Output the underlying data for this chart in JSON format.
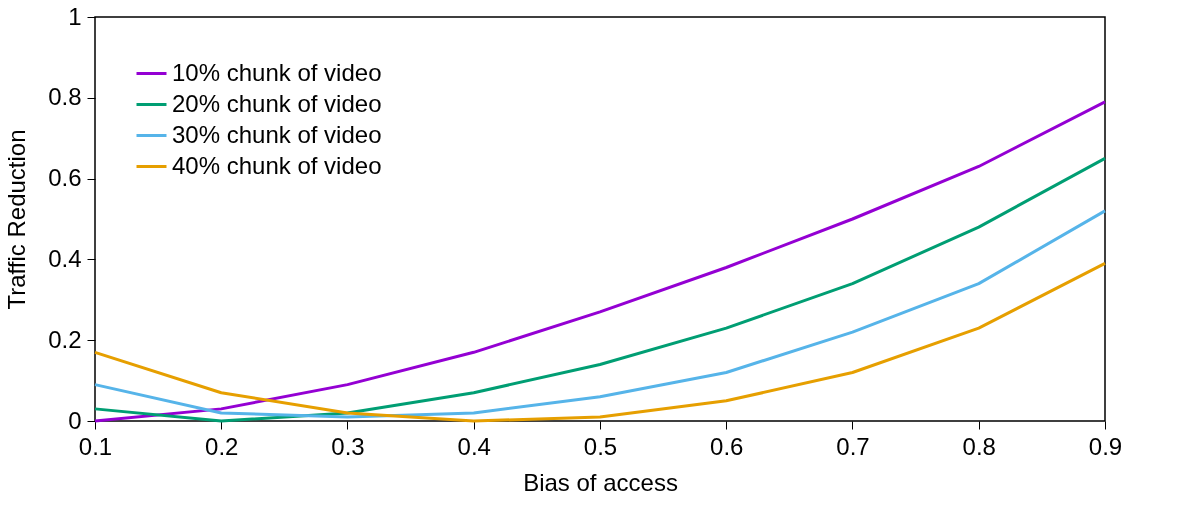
{
  "chart_data": {
    "type": "line",
    "xlabel": "Bias of access",
    "ylabel": "Traffic Reduction",
    "x": [
      0.1,
      0.2,
      0.3,
      0.4,
      0.5,
      0.6,
      0.7,
      0.8,
      0.9
    ],
    "series": [
      {
        "name": "10% chunk of video",
        "color": "#9400d3",
        "values": [
          0.0,
          0.03,
          0.09,
          0.17,
          0.27,
          0.38,
          0.5,
          0.63,
          0.79
        ]
      },
      {
        "name": "20% chunk of video",
        "color": "#009e73",
        "values": [
          0.03,
          0.0,
          0.02,
          0.07,
          0.14,
          0.23,
          0.34,
          0.48,
          0.65
        ]
      },
      {
        "name": "30% chunk of video",
        "color": "#56b4e9",
        "values": [
          0.09,
          0.02,
          0.01,
          0.02,
          0.06,
          0.12,
          0.22,
          0.34,
          0.52
        ]
      },
      {
        "name": "40% chunk of video",
        "color": "#e69f00",
        "values": [
          0.17,
          0.07,
          0.02,
          0.0,
          0.01,
          0.05,
          0.12,
          0.23,
          0.39
        ]
      }
    ],
    "xlim": [
      0.1,
      0.9
    ],
    "ylim": [
      0,
      1
    ],
    "xticks": [
      0.1,
      0.2,
      0.3,
      0.4,
      0.5,
      0.6,
      0.7,
      0.8,
      0.9
    ],
    "yticks": [
      0,
      0.2,
      0.4,
      0.6,
      0.8,
      1
    ],
    "grid": false,
    "legend": "top left",
    "marker": "none",
    "line_style": "solid"
  }
}
